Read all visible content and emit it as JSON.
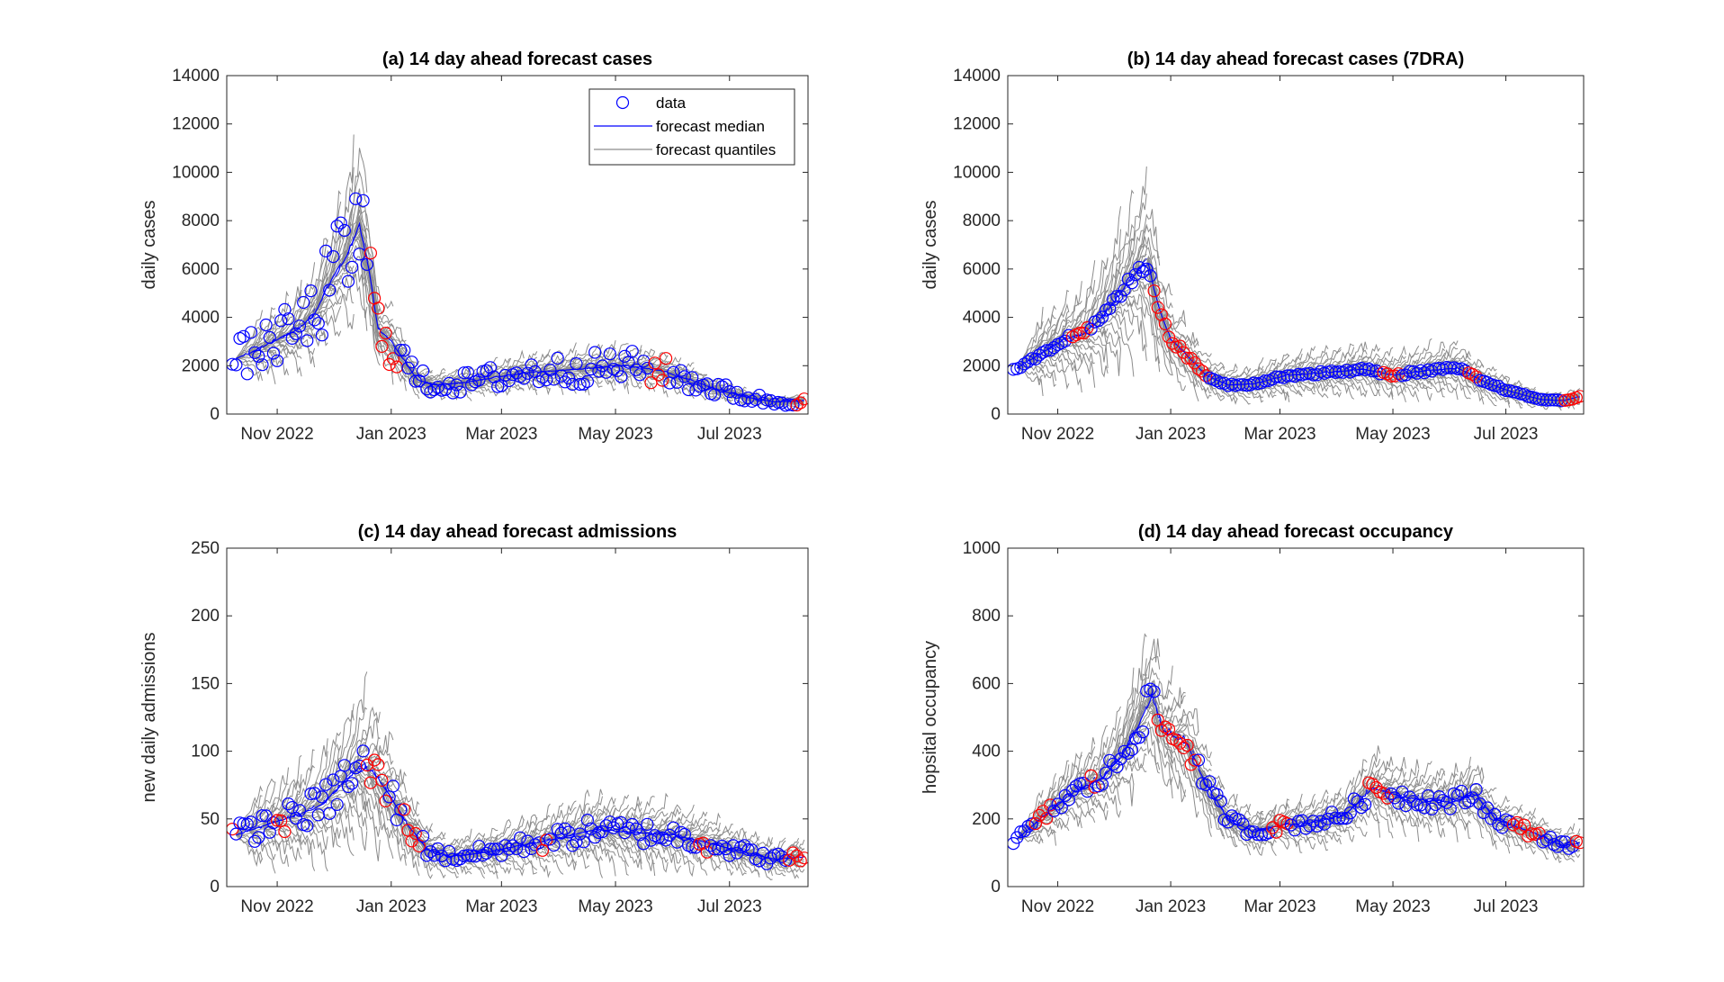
{
  "colors": {
    "data": "#0000ff",
    "data_unfitted": "#ff0000",
    "median": "#0000ff",
    "quantiles": "#8c8c8c"
  },
  "legend": {
    "data": "data",
    "median": "forecast median",
    "quantiles": "forecast quantiles"
  },
  "chart_data": [
    {
      "type": "line",
      "title": "(a) 14 day ahead forecast cases",
      "ylabel": "daily cases",
      "xlabel": "",
      "xlim": [
        "2022-10-05",
        "2023-08-12"
      ],
      "ylim": [
        0,
        14000
      ],
      "yticks": [
        0,
        2000,
        4000,
        6000,
        8000,
        10000,
        12000,
        14000
      ],
      "xticks": [
        {
          "date": "2022-11-01",
          "label": "Nov 2022"
        },
        {
          "date": "2023-01-01",
          "label": "Jan 2023"
        },
        {
          "date": "2023-03-01",
          "label": "Mar 2023"
        },
        {
          "date": "2023-05-01",
          "label": "May 2023"
        },
        {
          "date": "2023-07-01",
          "label": "Jul 2023"
        }
      ],
      "legend_position": "top-right",
      "grid": false,
      "anchors": [
        [
          "2022-10-10",
          2300
        ],
        [
          "2022-10-20",
          2600
        ],
        [
          "2022-10-30",
          3000
        ],
        [
          "2022-11-10",
          3400
        ],
        [
          "2022-11-20",
          4000
        ],
        [
          "2022-11-30",
          5500
        ],
        [
          "2022-12-08",
          6500
        ],
        [
          "2022-12-15",
          7800
        ],
        [
          "2022-12-20",
          6000
        ],
        [
          "2022-12-25",
          3500
        ],
        [
          "2023-01-01",
          3000
        ],
        [
          "2023-01-08",
          2200
        ],
        [
          "2023-01-15",
          1400
        ],
        [
          "2023-01-25",
          1200
        ],
        [
          "2023-02-10",
          1300
        ],
        [
          "2023-02-25",
          1500
        ],
        [
          "2023-03-15",
          1700
        ],
        [
          "2023-04-01",
          1800
        ],
        [
          "2023-04-20",
          1900
        ],
        [
          "2023-05-05",
          2000
        ],
        [
          "2023-05-25",
          1800
        ],
        [
          "2023-06-10",
          1400
        ],
        [
          "2023-06-25",
          1000
        ],
        [
          "2023-07-10",
          700
        ],
        [
          "2023-07-25",
          500
        ],
        [
          "2023-08-10",
          550
        ]
      ],
      "red_ranges": [
        [
          "2022-12-20",
          "2023-01-05"
        ],
        [
          "2023-05-20",
          "2023-05-28"
        ],
        [
          "2023-08-05",
          "2023-08-12"
        ]
      ],
      "noise": 0.35,
      "q_spread": 0.6
    },
    {
      "type": "line",
      "title": "(b) 14 day ahead forecast cases (7DRA)",
      "ylabel": "daily cases",
      "xlabel": "",
      "xlim": [
        "2022-10-05",
        "2023-08-12"
      ],
      "ylim": [
        0,
        14000
      ],
      "yticks": [
        0,
        2000,
        4000,
        6000,
        8000,
        10000,
        12000,
        14000
      ],
      "xticks": [
        {
          "date": "2022-11-01",
          "label": "Nov 2022"
        },
        {
          "date": "2023-01-01",
          "label": "Jan 2023"
        },
        {
          "date": "2023-03-01",
          "label": "Mar 2023"
        },
        {
          "date": "2023-05-01",
          "label": "May 2023"
        },
        {
          "date": "2023-07-01",
          "label": "Jul 2023"
        }
      ],
      "grid": false,
      "anchors": [
        [
          "2022-10-10",
          1900
        ],
        [
          "2022-10-25",
          2600
        ],
        [
          "2022-11-05",
          3100
        ],
        [
          "2022-11-15",
          3300
        ],
        [
          "2022-11-25",
          4000
        ],
        [
          "2022-12-05",
          5000
        ],
        [
          "2022-12-15",
          6000
        ],
        [
          "2022-12-20",
          6200
        ],
        [
          "2022-12-25",
          4500
        ],
        [
          "2023-01-01",
          3100
        ],
        [
          "2023-01-10",
          2400
        ],
        [
          "2023-01-20",
          1600
        ],
        [
          "2023-02-01",
          1200
        ],
        [
          "2023-02-15",
          1250
        ],
        [
          "2023-03-05",
          1600
        ],
        [
          "2023-03-25",
          1700
        ],
        [
          "2023-04-15",
          1850
        ],
        [
          "2023-05-01",
          1600
        ],
        [
          "2023-05-20",
          1800
        ],
        [
          "2023-06-05",
          1900
        ],
        [
          "2023-06-20",
          1300
        ],
        [
          "2023-07-05",
          900
        ],
        [
          "2023-07-20",
          600
        ],
        [
          "2023-08-01",
          550
        ],
        [
          "2023-08-12",
          750
        ]
      ],
      "red_ranges": [
        [
          "2022-11-08",
          "2022-11-18"
        ],
        [
          "2022-12-22",
          "2023-01-20"
        ],
        [
          "2023-04-25",
          "2023-05-05"
        ],
        [
          "2023-06-10",
          "2023-06-16"
        ],
        [
          "2023-08-02",
          "2023-08-12"
        ]
      ],
      "noise": 0.04,
      "q_spread": 0.75
    },
    {
      "type": "line",
      "title": "(c) 14 day ahead forecast admissions",
      "ylabel": "new daily admissions",
      "xlabel": "",
      "xlim": [
        "2022-10-05",
        "2023-08-12"
      ],
      "ylim": [
        0,
        250
      ],
      "yticks": [
        0,
        50,
        100,
        150,
        200,
        250
      ],
      "xticks": [
        {
          "date": "2022-11-01",
          "label": "Nov 2022"
        },
        {
          "date": "2023-01-01",
          "label": "Jan 2023"
        },
        {
          "date": "2023-03-01",
          "label": "Mar 2023"
        },
        {
          "date": "2023-05-01",
          "label": "May 2023"
        },
        {
          "date": "2023-07-01",
          "label": "Jul 2023"
        }
      ],
      "grid": false,
      "anchors": [
        [
          "2022-10-10",
          38
        ],
        [
          "2022-10-25",
          45
        ],
        [
          "2022-11-10",
          52
        ],
        [
          "2022-11-25",
          60
        ],
        [
          "2022-12-05",
          75
        ],
        [
          "2022-12-15",
          88
        ],
        [
          "2022-12-22",
          85
        ],
        [
          "2022-12-30",
          70
        ],
        [
          "2023-01-10",
          45
        ],
        [
          "2023-01-20",
          28
        ],
        [
          "2023-02-01",
          22
        ],
        [
          "2023-02-20",
          25
        ],
        [
          "2023-03-10",
          30
        ],
        [
          "2023-03-30",
          35
        ],
        [
          "2023-04-20",
          42
        ],
        [
          "2023-05-10",
          40
        ],
        [
          "2023-06-01",
          38
        ],
        [
          "2023-06-20",
          32
        ],
        [
          "2023-07-10",
          25
        ],
        [
          "2023-07-25",
          20
        ],
        [
          "2023-08-10",
          22
        ]
      ],
      "red_ranges": [
        [
          "2022-10-06",
          "2022-10-09"
        ],
        [
          "2022-11-01",
          "2022-11-06"
        ],
        [
          "2022-12-18",
          "2022-12-30"
        ],
        [
          "2023-01-08",
          "2023-01-16"
        ],
        [
          "2023-03-22",
          "2023-03-26"
        ],
        [
          "2023-06-14",
          "2023-06-20"
        ],
        [
          "2023-08-02",
          "2023-08-12"
        ]
      ],
      "noise": 0.22,
      "q_spread": 0.85
    },
    {
      "type": "line",
      "title": "(d) 14 day ahead forecast occupancy",
      "ylabel": "hopsital occupancy",
      "xlabel": "",
      "xlim": [
        "2022-10-05",
        "2023-08-12"
      ],
      "ylim": [
        0,
        1000
      ],
      "yticks": [
        0,
        200,
        400,
        600,
        800,
        1000
      ],
      "xticks": [
        {
          "date": "2022-11-01",
          "label": "Nov 2022"
        },
        {
          "date": "2023-01-01",
          "label": "Jan 2023"
        },
        {
          "date": "2023-03-01",
          "label": "Mar 2023"
        },
        {
          "date": "2023-05-01",
          "label": "May 2023"
        },
        {
          "date": "2023-07-01",
          "label": "Jul 2023"
        }
      ],
      "grid": false,
      "anchors": [
        [
          "2022-10-10",
          140
        ],
        [
          "2022-10-25",
          210
        ],
        [
          "2022-11-10",
          280
        ],
        [
          "2022-11-25",
          320
        ],
        [
          "2022-12-05",
          380
        ],
        [
          "2022-12-15",
          480
        ],
        [
          "2022-12-22",
          560
        ],
        [
          "2022-12-28",
          460
        ],
        [
          "2023-01-10",
          420
        ],
        [
          "2023-01-20",
          300
        ],
        [
          "2023-02-01",
          200
        ],
        [
          "2023-02-15",
          160
        ],
        [
          "2023-03-01",
          180
        ],
        [
          "2023-03-20",
          190
        ],
        [
          "2023-04-05",
          210
        ],
        [
          "2023-04-20",
          290
        ],
        [
          "2023-05-10",
          260
        ],
        [
          "2023-06-01",
          250
        ],
        [
          "2023-06-15",
          270
        ],
        [
          "2023-06-25",
          200
        ],
        [
          "2023-07-15",
          160
        ],
        [
          "2023-08-01",
          120
        ],
        [
          "2023-08-12",
          130
        ]
      ],
      "red_ranges": [
        [
          "2022-10-20",
          "2022-10-28"
        ],
        [
          "2022-11-18",
          "2022-11-22"
        ],
        [
          "2022-12-24",
          "2023-01-15"
        ],
        [
          "2023-02-25",
          "2023-03-05"
        ],
        [
          "2023-04-18",
          "2023-04-28"
        ],
        [
          "2023-07-05",
          "2023-07-20"
        ],
        [
          "2023-08-08",
          "2023-08-12"
        ]
      ],
      "noise": 0.1,
      "q_spread": 0.5
    }
  ]
}
